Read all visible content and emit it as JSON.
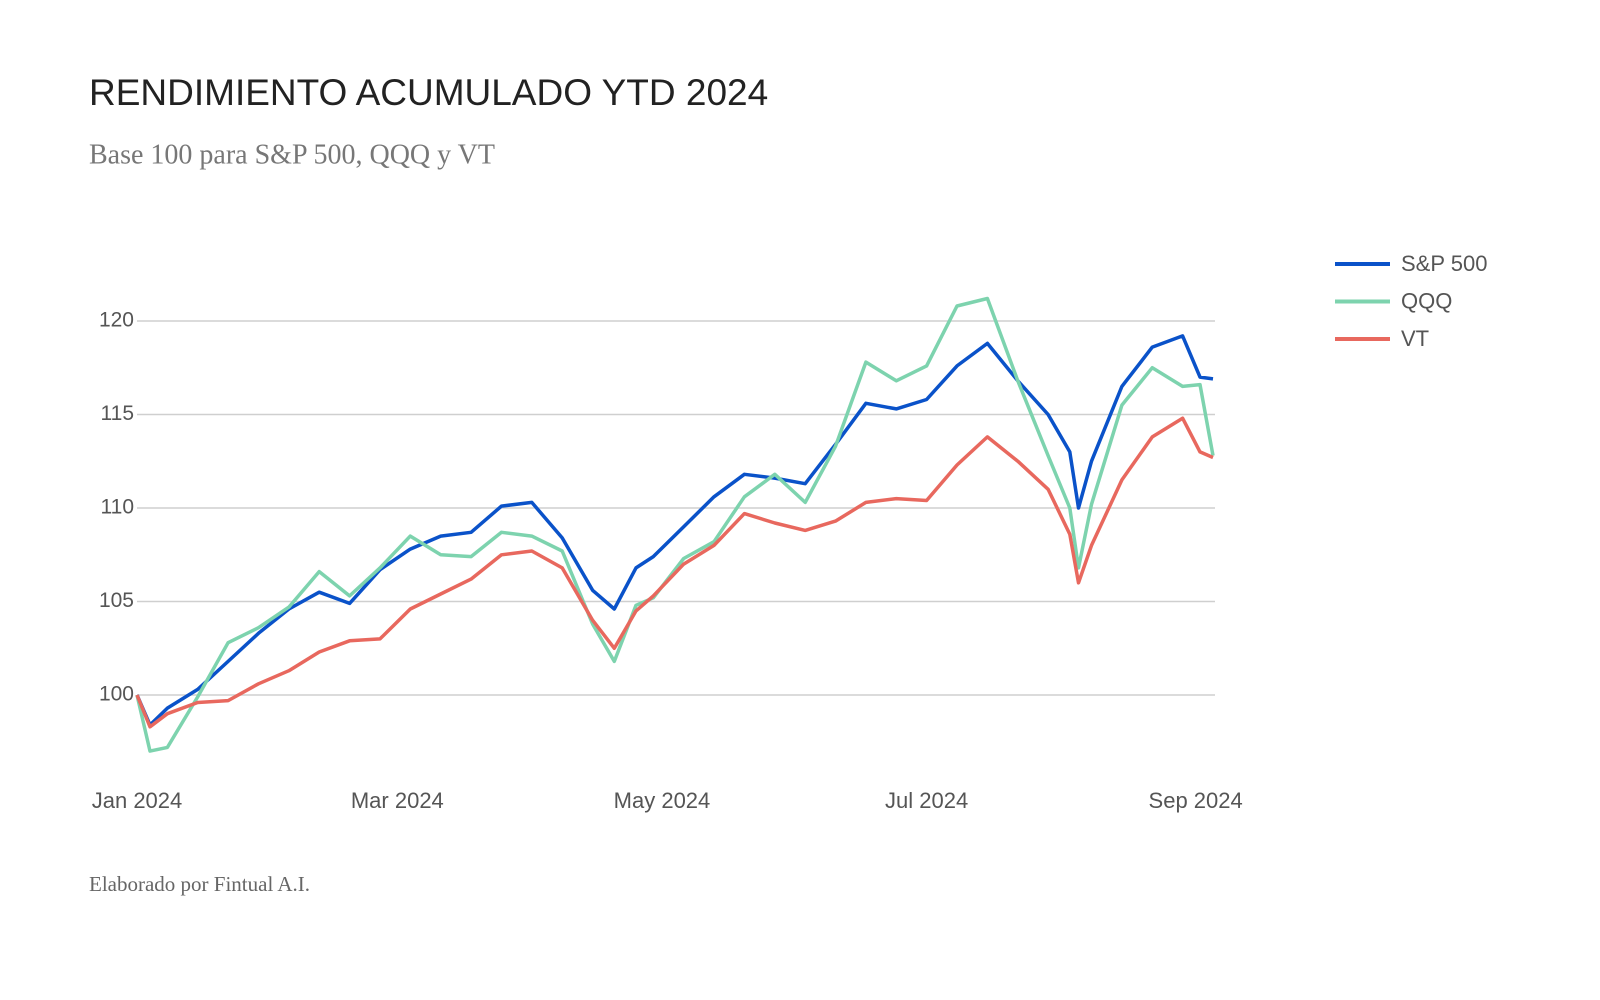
{
  "chart_data": {
    "type": "line",
    "title": "RENDIMIENTO ACUMULADO YTD 2024",
    "subtitle": "Base 100 para S&P 500, QQQ y VT",
    "footer": "Elaborado por Fintual A.I.",
    "x": [
      0,
      3,
      7,
      14,
      21,
      28,
      35,
      42,
      49,
      56,
      63,
      70,
      77,
      84,
      91,
      98,
      105,
      110,
      115,
      119,
      126,
      133,
      140,
      147,
      154,
      161,
      168,
      175,
      182,
      189,
      196,
      203,
      210,
      215,
      217,
      220,
      227,
      234,
      241,
      245,
      248
    ],
    "xlim": [
      0,
      248
    ],
    "xticks": [
      {
        "value": 0,
        "label": "Jan 2024"
      },
      {
        "value": 60,
        "label": "Mar 2024"
      },
      {
        "value": 121,
        "label": "May 2024"
      },
      {
        "value": 182,
        "label": "Jul 2024"
      },
      {
        "value": 244,
        "label": "Sep 2024"
      }
    ],
    "ylim": [
      96.5,
      123.5
    ],
    "yticks": [
      100,
      105,
      110,
      115,
      120
    ],
    "grid": true,
    "legend": "right",
    "series": [
      {
        "name": "S&P 500",
        "color": "#0a52c9",
        "values": [
          100,
          98.4,
          99.3,
          100.3,
          101.8,
          103.3,
          104.6,
          105.5,
          104.9,
          106.7,
          107.8,
          108.5,
          108.7,
          110.1,
          110.3,
          108.4,
          105.6,
          104.6,
          106.8,
          107.4,
          109.0,
          110.6,
          111.8,
          111.6,
          111.3,
          113.4,
          115.6,
          115.3,
          115.8,
          117.6,
          118.8,
          116.8,
          115.0,
          113.0,
          110.0,
          112.5,
          116.5,
          118.6,
          119.2,
          117.0,
          116.9
        ]
      },
      {
        "name": "QQQ",
        "color": "#7dd3ae",
        "values": [
          100,
          97.0,
          97.2,
          99.9,
          102.8,
          103.6,
          104.7,
          106.6,
          105.3,
          106.8,
          108.5,
          107.5,
          107.4,
          108.7,
          108.5,
          107.7,
          103.8,
          101.8,
          104.8,
          105.2,
          107.3,
          108.2,
          110.6,
          111.8,
          110.3,
          113.3,
          117.8,
          116.8,
          117.6,
          120.8,
          121.2,
          116.8,
          112.8,
          110.0,
          106.8,
          110.2,
          115.5,
          117.5,
          116.5,
          116.6,
          112.8
        ]
      },
      {
        "name": "VT",
        "color": "#e8685e",
        "values": [
          100,
          98.3,
          99.0,
          99.6,
          99.7,
          100.6,
          101.3,
          102.3,
          102.9,
          103.0,
          104.6,
          105.4,
          106.2,
          107.5,
          107.7,
          106.8,
          104.0,
          102.5,
          104.5,
          105.3,
          107.0,
          108.0,
          109.7,
          109.2,
          108.8,
          109.3,
          110.3,
          110.5,
          110.4,
          112.3,
          113.8,
          112.5,
          111.0,
          108.6,
          106.0,
          108.0,
          111.5,
          113.8,
          114.8,
          113.0,
          112.7
        ]
      }
    ]
  }
}
